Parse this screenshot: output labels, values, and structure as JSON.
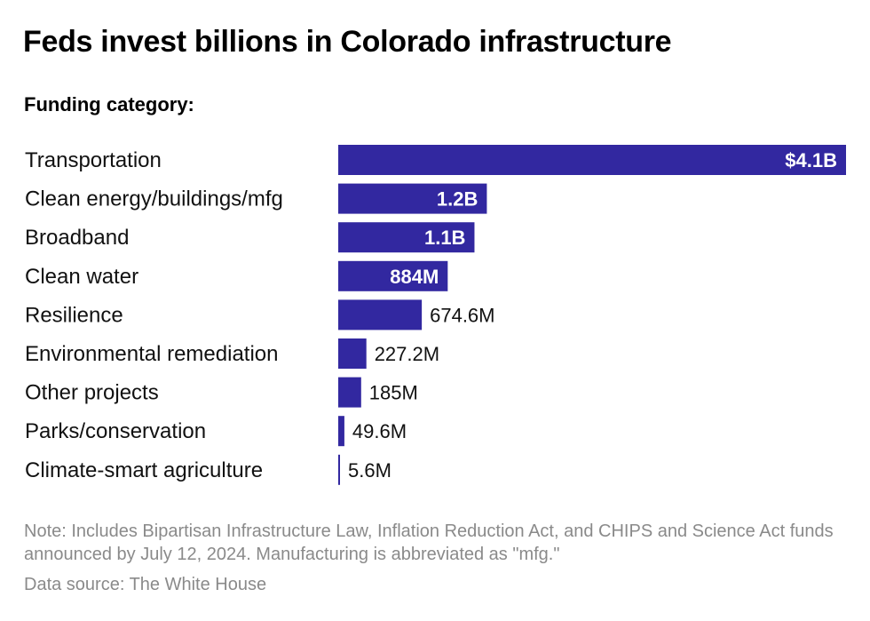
{
  "title": "Feds invest billions in Colorado infrastructure",
  "subtitle": "Funding category:",
  "note": "Note: Includes Bipartisan Infrastructure Law, Inflation Reduction Act, and CHIPS and Science Act funds announced by July 12, 2024. Manufacturing is abbreviated as \"mfg.\"",
  "source": "Data source: The White House",
  "colors": {
    "bar": "#3228a0",
    "inside_label": "#ffffff",
    "outside_label": "#111111"
  },
  "chart_data": {
    "type": "bar",
    "orientation": "horizontal",
    "categories": [
      "Transportation",
      "Clean energy/buildings/mfg",
      "Broadband",
      "Clean water",
      "Resilience",
      "Environmental remediation",
      "Other projects",
      "Parks/conservation",
      "Climate-smart agriculture"
    ],
    "values": [
      4100,
      1200,
      1100,
      884,
      674.6,
      227.2,
      185,
      49.6,
      5.6
    ],
    "value_labels": [
      "$4.1B",
      "1.2B",
      "1.1B",
      "884M",
      "674.6M",
      "227.2M",
      "185M",
      "49.6M",
      "5.6M"
    ],
    "unit": "millions of dollars",
    "xlim": [
      0,
      4100
    ],
    "grid": false,
    "legend": "none"
  }
}
